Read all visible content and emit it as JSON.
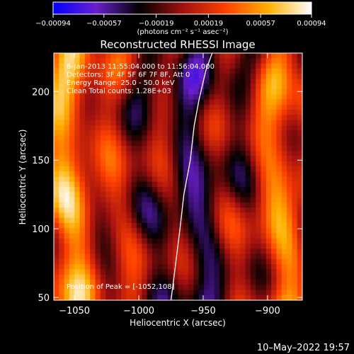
{
  "chart_data": {
    "type": "heatmap",
    "title": "Reconstructed RHESSI Image",
    "xlabel": "Heliocentric X (arcsec)",
    "ylabel": "Heliocentric Y (arcsec)",
    "xlim": [
      -1066,
      -873
    ],
    "ylim": [
      48,
      228
    ],
    "x_ticks": [
      {
        "value": -1050,
        "label": "−1050"
      },
      {
        "value": -1000,
        "label": "−1000"
      },
      {
        "value": -950,
        "label": "−950"
      },
      {
        "value": -900,
        "label": "−900"
      }
    ],
    "y_ticks": [
      {
        "value": 50,
        "label": "50"
      },
      {
        "value": 100,
        "label": "100"
      },
      {
        "value": 150,
        "label": "150"
      },
      {
        "value": 200,
        "label": "200"
      }
    ],
    "colorbar": {
      "range": [
        -0.00094,
        0.00094
      ],
      "tick_labels": [
        "−0.00094",
        "−0.00057",
        "−0.00019",
        "0.00019",
        "0.00057",
        "0.00094"
      ],
      "tick_values": [
        -0.00094,
        -0.00057,
        -0.00019,
        0.00019,
        0.00057,
        0.00094
      ],
      "units_label": "(photons cm⁻² s⁻¹ asec⁻²)",
      "colors": [
        "#0000ff",
        "#6b1fd0",
        "#000000",
        "#a01010",
        "#ff4000",
        "#ffb000",
        "#ffffff"
      ]
    },
    "annotations": [
      "8-Jan-2013 11:55:04.000 to 11:56:04.000",
      "Detectors: 3F 4F 5F 6F 7F 8F, Att 0",
      "Energy Range: 25.0 - 50.0 keV",
      "Clean     Total counts: 1.28E+03"
    ],
    "peak_label": "Position of Peak = [-1052,108]",
    "limb_curve": [
      [
        -975,
        48
      ],
      [
        -972,
        70
      ],
      [
        -968,
        100
      ],
      [
        -965,
        125
      ],
      [
        -960,
        150
      ],
      [
        -957,
        175
      ],
      [
        -953,
        195
      ],
      [
        -948,
        215
      ],
      [
        -943,
        228
      ]
    ],
    "grid": false
  },
  "footer": {
    "timestamp": "10–May–2022 19:57"
  }
}
